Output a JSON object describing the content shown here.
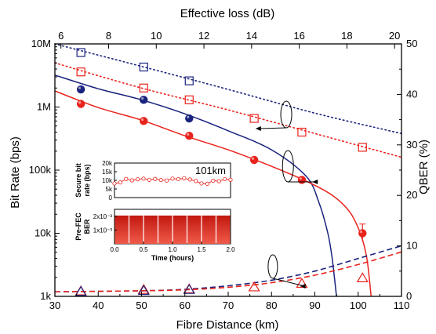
{
  "chart_data": {
    "type": "line",
    "title": "",
    "xlabel": "Fibre Distance (km)",
    "x_top_label": "Effective loss (dB)",
    "ylabel_left": "Bit Rate (bps)",
    "ylabel_right": "QBER (%)",
    "xlim": [
      30,
      110
    ],
    "x_ticks": [
      30,
      40,
      50,
      60,
      70,
      80,
      90,
      100,
      110
    ],
    "x_top_ticks": [
      6,
      8,
      10,
      12,
      14,
      16,
      18,
      20
    ],
    "x_top_mapping": {
      "km_at_6dB": 31.4,
      "km_per_dB": 5.5
    },
    "ylim_left": [
      1000,
      10000000
    ],
    "y_left_scale": "log",
    "y_left_ticks": [
      {
        "value": 1000,
        "label": "1k"
      },
      {
        "value": 10000,
        "label": "10k"
      },
      {
        "value": 100000,
        "label": "100k"
      },
      {
        "value": 1000000,
        "label": "1M"
      },
      {
        "value": 10000000,
        "label": "10M"
      }
    ],
    "ylim_right": [
      0,
      50
    ],
    "y_right_ticks": [
      0,
      10,
      20,
      30,
      40,
      50
    ],
    "colors": {
      "blue": "#1a237e",
      "red": "#e8231c"
    },
    "series": [
      {
        "axis": "left",
        "marker": "filled-circle",
        "color": "red",
        "line": "solid",
        "points": [
          [
            36,
            1120000
          ],
          [
            50.5,
            600000
          ],
          [
            61,
            350000
          ],
          [
            76,
            145000
          ],
          [
            87,
            70000
          ],
          [
            101,
            10000
          ]
        ]
      },
      {
        "axis": "left",
        "marker": "filled-circle",
        "color": "blue",
        "line": "solid",
        "points": [
          [
            36,
            1900000
          ],
          [
            50.5,
            1300000
          ],
          [
            61,
            660000
          ]
        ]
      },
      {
        "axis": "left",
        "marker": "open-square",
        "color": "blue",
        "line": "dotted",
        "points": [
          [
            36,
            7300000
          ],
          [
            50.5,
            4300000
          ],
          [
            61,
            2600000
          ]
        ]
      },
      {
        "axis": "left",
        "marker": "open-square",
        "color": "red",
        "line": "dotted",
        "points": [
          [
            36,
            3600000
          ],
          [
            50.5,
            2000000
          ],
          [
            61,
            1300000
          ],
          [
            76,
            660000
          ],
          [
            87,
            400000
          ],
          [
            101,
            230000
          ]
        ]
      },
      {
        "axis": "right",
        "marker": "open-triangle",
        "color": "red",
        "line": "dashed",
        "points": [
          [
            36,
            1.0
          ],
          [
            50.5,
            1.3
          ],
          [
            61,
            1.4
          ],
          [
            76,
            1.8
          ],
          [
            87,
            2.5
          ],
          [
            101,
            3.6
          ]
        ]
      },
      {
        "axis": "right",
        "marker": "open-triangle",
        "color": "blue",
        "line": "dashed",
        "points": [
          [
            36,
            0.9
          ],
          [
            50.5,
            1.1
          ],
          [
            61,
            1.3
          ]
        ]
      }
    ],
    "fit_curves": [
      {
        "color": "blue",
        "line": "solid",
        "axis": "left",
        "points": [
          [
            30,
            3200000
          ],
          [
            40,
            1950000
          ],
          [
            50,
            1300000
          ],
          [
            60,
            780000
          ],
          [
            70,
            420000
          ],
          [
            80,
            210000
          ],
          [
            88,
            80000
          ],
          [
            91,
            30000
          ],
          [
            93,
            10000
          ],
          [
            94,
            4000
          ],
          [
            95,
            1000
          ]
        ]
      },
      {
        "color": "red",
        "line": "solid",
        "axis": "left",
        "points": [
          [
            30,
            1800000
          ],
          [
            40,
            980000
          ],
          [
            50,
            620000
          ],
          [
            60,
            350000
          ],
          [
            70,
            210000
          ],
          [
            80,
            115000
          ],
          [
            88,
            67000
          ],
          [
            94,
            40000
          ],
          [
            98,
            22000
          ],
          [
            100.5,
            10000
          ],
          [
            102,
            4000
          ],
          [
            103,
            1000
          ]
        ]
      },
      {
        "color": "blue",
        "line": "dotted",
        "axis": "left",
        "points": [
          [
            30,
            10000000
          ],
          [
            50,
            4400000
          ],
          [
            70,
            1900000
          ],
          [
            90,
            800000
          ],
          [
            110,
            380000
          ]
        ]
      },
      {
        "color": "red",
        "line": "dotted",
        "axis": "left",
        "points": [
          [
            30,
            5000000
          ],
          [
            50,
            2000000
          ],
          [
            70,
            900000
          ],
          [
            90,
            380000
          ],
          [
            110,
            160000
          ]
        ]
      },
      {
        "color": "blue",
        "line": "dashed",
        "axis": "right",
        "points": [
          [
            30,
            0.9
          ],
          [
            40,
            1.0
          ],
          [
            50,
            1.1
          ],
          [
            60,
            1.4
          ],
          [
            70,
            2.1
          ],
          [
            80,
            3.2
          ],
          [
            90,
            5.0
          ],
          [
            100,
            7.5
          ],
          [
            110,
            10.0
          ]
        ]
      },
      {
        "color": "red",
        "line": "dashed",
        "axis": "right",
        "points": [
          [
            30,
            0.9
          ],
          [
            40,
            1.0
          ],
          [
            50,
            1.1
          ],
          [
            60,
            1.3
          ],
          [
            70,
            1.8
          ],
          [
            80,
            2.7
          ],
          [
            90,
            4.2
          ],
          [
            100,
            6.3
          ],
          [
            110,
            8.8
          ]
        ]
      }
    ],
    "inset": {
      "annotation": "101km",
      "top_ylabel": "Secure bit rate (bps)",
      "top_ylim": [
        0,
        20000
      ],
      "top_ticks": [
        {
          "value": 0,
          "label": "0"
        },
        {
          "value": 5000,
          "label": "5k"
        },
        {
          "value": 10000,
          "label": "10k"
        },
        {
          "value": 15000,
          "label": "15k"
        },
        {
          "value": 20000,
          "label": "20k"
        }
      ],
      "top_series": [
        [
          0.0,
          8200
        ],
        [
          0.1,
          8800
        ],
        [
          0.2,
          10800
        ],
        [
          0.3,
          10000
        ],
        [
          0.4,
          10600
        ],
        [
          0.5,
          11000
        ],
        [
          0.6,
          10300
        ],
        [
          0.7,
          10800
        ],
        [
          0.8,
          10200
        ],
        [
          0.9,
          9900
        ],
        [
          1.0,
          11000
        ],
        [
          1.1,
          10700
        ],
        [
          1.2,
          11200
        ],
        [
          1.3,
          10500
        ],
        [
          1.4,
          9600
        ],
        [
          1.5,
          8200
        ],
        [
          1.6,
          8000
        ],
        [
          1.7,
          9800
        ],
        [
          1.8,
          9500
        ],
        [
          1.9,
          10700
        ],
        [
          2.0,
          10300
        ]
      ],
      "bottom_ylabel": "Pre-FEC BER",
      "bottom_ticks": [
        {
          "value": 0.001,
          "label": "1x10⁻³"
        },
        {
          "value": 0.002,
          "label": "2x10⁻³"
        }
      ],
      "bottom_ylim": [
        0,
        0.0025
      ],
      "bottom_bars": [
        0.00205,
        0.00205,
        0.00205,
        0.00205,
        0.00205,
        0.00205,
        0.00205,
        0.00205
      ],
      "xlabel": "Time (hours)",
      "xlim": [
        0,
        2
      ],
      "x_ticks": [
        {
          "value": 0,
          "label": "0.0"
        },
        {
          "value": 0.5,
          "label": "0.5"
        },
        {
          "value": 1.0,
          "label": "1.0"
        },
        {
          "value": 1.5,
          "label": "1.5"
        },
        {
          "value": 2.0,
          "label": "2.0"
        }
      ]
    }
  }
}
